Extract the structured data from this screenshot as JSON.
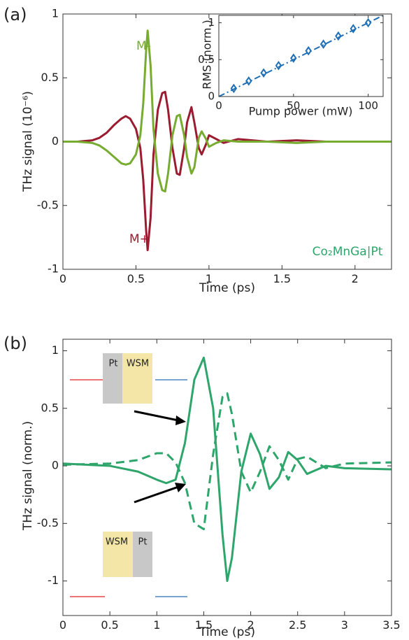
{
  "chart_data": [
    {
      "type": "line",
      "panel_label": "(a)",
      "ylabel": "THz signal (10⁻⁶)",
      "xlabel": "Time (ps)",
      "annotation": "Co₂MnGa|Pt",
      "x": [
        0,
        0.1,
        0.2,
        0.25,
        0.3,
        0.35,
        0.4,
        0.43,
        0.46,
        0.5,
        0.53,
        0.55,
        0.57,
        0.58,
        0.6,
        0.62,
        0.65,
        0.68,
        0.7,
        0.72,
        0.75,
        0.78,
        0.8,
        0.83,
        0.85,
        0.88,
        0.9,
        0.93,
        0.95,
        0.98,
        1.0,
        1.05,
        1.1,
        1.2,
        1.4,
        1.6,
        1.8,
        2.0,
        2.25
      ],
      "series": [
        {
          "name": "M+",
          "color": "#9b1b30",
          "values": [
            0,
            0,
            0.01,
            0.03,
            0.07,
            0.13,
            0.18,
            0.2,
            0.18,
            0.1,
            -0.05,
            -0.3,
            -0.7,
            -0.85,
            -0.6,
            -0.1,
            0.25,
            0.38,
            0.39,
            0.25,
            -0.05,
            -0.25,
            -0.26,
            -0.05,
            0.15,
            0.27,
            0.15,
            -0.05,
            -0.1,
            -0.02,
            0.05,
            0.02,
            -0.01,
            0.02,
            0,
            0.01,
            0,
            0,
            0
          ]
        },
        {
          "name": "M-",
          "color": "#77ac30",
          "values": [
            0,
            0,
            -0.01,
            -0.03,
            -0.07,
            -0.12,
            -0.17,
            -0.18,
            -0.17,
            -0.1,
            0.05,
            0.3,
            0.72,
            0.87,
            0.6,
            0.1,
            -0.25,
            -0.38,
            -0.39,
            -0.25,
            0.05,
            0.2,
            0.21,
            0.05,
            -0.12,
            -0.25,
            -0.2,
            0.03,
            0.08,
            0.02,
            -0.04,
            -0.01,
            0.01,
            0,
            0,
            -0.01,
            0,
            0,
            0
          ]
        }
      ],
      "xlim": [
        0,
        2.25
      ],
      "xticks": [
        0,
        0.5,
        1,
        1.5,
        2
      ],
      "ylim": [
        -1,
        1
      ],
      "yticks": [
        -1,
        -0.5,
        0,
        0.5,
        1
      ]
    },
    {
      "type": "scatter",
      "ylabel": "RMS (norm.)",
      "xlabel": "Pump power (mW)",
      "series": [
        {
          "color": "#1f6fb4",
          "marker": "diamond",
          "x": [
            10,
            20,
            30,
            40,
            50,
            60,
            70,
            80,
            90,
            100
          ],
          "values": [
            0.11,
            0.21,
            0.32,
            0.42,
            0.52,
            0.62,
            0.71,
            0.82,
            0.92,
            1.0
          ]
        },
        {
          "color": "#1f6fb4",
          "dash": "dashdot",
          "x": [
            0,
            110
          ],
          "values": [
            0,
            1.1
          ]
        }
      ],
      "xlim": [
        0,
        110
      ],
      "xticks": [
        0,
        50,
        100
      ],
      "ylim": [
        0,
        1.1
      ],
      "yticks": [
        0,
        0.5,
        1
      ]
    },
    {
      "type": "line",
      "panel_label": "(b)",
      "ylabel": "THz signal (norm.)",
      "xlabel": "Time (ps)",
      "annotations": [
        "Pt",
        "WSM",
        "WSM",
        "Pt"
      ],
      "x": [
        0,
        0.5,
        0.8,
        1.0,
        1.1,
        1.2,
        1.3,
        1.4,
        1.5,
        1.6,
        1.7,
        1.75,
        1.8,
        1.9,
        2.0,
        2.1,
        2.2,
        2.3,
        2.4,
        2.5,
        2.6,
        2.8,
        3.0,
        3.5
      ],
      "series": [
        {
          "color": "#2ea56a",
          "values": [
            0.02,
            0,
            -0.05,
            -0.12,
            -0.15,
            -0.12,
            0.2,
            0.75,
            0.94,
            0.5,
            -0.6,
            -1.0,
            -0.8,
            -0.05,
            0.28,
            0.1,
            -0.2,
            -0.1,
            0.12,
            0.05,
            -0.07,
            0,
            -0.02,
            -0.03
          ]
        },
        {
          "color": "#2ea56a",
          "dash": "dashed",
          "values": [
            0.01,
            0.02,
            0.05,
            0.11,
            0.11,
            0.03,
            -0.15,
            -0.5,
            -0.55,
            0.1,
            0.6,
            0.63,
            0.45,
            -0.05,
            -0.23,
            -0.05,
            0.17,
            0.05,
            -0.12,
            0.06,
            0.08,
            -0.02,
            0.02,
            0.03
          ]
        }
      ],
      "xlim": [
        0,
        3.5
      ],
      "xticks": [
        0,
        0.5,
        1,
        1.5,
        2,
        2.5,
        3,
        3.5
      ],
      "ylim": [
        -1.3,
        1.1
      ],
      "yticks": [
        -1,
        -0.5,
        0,
        0.5,
        1
      ]
    }
  ]
}
